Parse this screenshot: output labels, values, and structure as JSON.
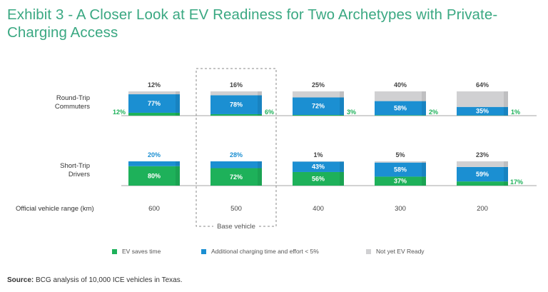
{
  "title": "Exhibit 3 - A Closer Look at EV Readiness for Two Archetypes with Private-Charging Access",
  "colors": {
    "ev_saves_time": "#1eb15a",
    "additional_charging": "#1b8fd2",
    "not_ready": "#d0d0d2",
    "title": "#3aa882"
  },
  "chart_data": {
    "type": "bar",
    "stacked": true,
    "x_label": "Official vehicle range (km)",
    "categories": [
      "600",
      "500",
      "400",
      "300",
      "200"
    ],
    "highlight": {
      "category": "500",
      "label": "Base vehicle"
    },
    "groups": [
      {
        "name": "Round-Trip\nCommuters",
        "series": [
          {
            "name": "EV saves time",
            "values": [
              12,
              6,
              3,
              2,
              1
            ]
          },
          {
            "name": "Additional charging time and effort < 5%",
            "values": [
              77,
              78,
              72,
              58,
              35
            ]
          },
          {
            "name": "Not yet EV Ready",
            "values": [
              12,
              16,
              25,
              40,
              64
            ]
          }
        ],
        "labels": {
          "green": [
            "12%",
            "6%",
            "3%",
            "2%",
            "1%"
          ],
          "blue": [
            "77%",
            "78%",
            "72%",
            "58%",
            "35%"
          ],
          "gray": [
            "12%",
            "16%",
            "25%",
            "40%",
            "64%"
          ]
        }
      },
      {
        "name": "Short-Trip\nDrivers",
        "series": [
          {
            "name": "EV saves time",
            "values": [
              80,
              72,
              56,
              37,
              17
            ]
          },
          {
            "name": "Additional charging time and effort < 5%",
            "values": [
              20,
              28,
              43,
              58,
              59
            ]
          },
          {
            "name": "Not yet EV Ready",
            "values": [
              0,
              0,
              1,
              5,
              23
            ]
          }
        ],
        "labels": {
          "green": [
            "80%",
            "72%",
            "56%",
            "37%",
            "17%"
          ],
          "blue": [
            "20%",
            "28%",
            "43%",
            "58%",
            "59%"
          ],
          "gray": [
            "",
            "",
            "1%",
            "5%",
            "23%"
          ]
        }
      }
    ],
    "legend": [
      "EV saves time",
      "Additional charging time and effort < 5%",
      "Not yet EV Ready"
    ]
  },
  "source": {
    "label": "Source:",
    "text": " BCG analysis of 10,000 ICE vehicles in Texas."
  }
}
